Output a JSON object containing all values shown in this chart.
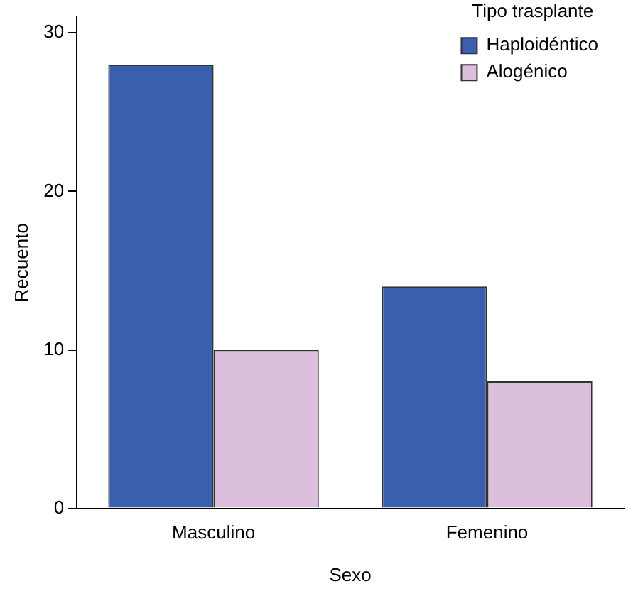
{
  "chart_data": {
    "type": "bar",
    "xlabel": "Sexo",
    "ylabel": "Recuento",
    "legend_title": "Tipo trasplante",
    "categories": [
      "Masculino",
      "Femenino"
    ],
    "series": [
      {
        "name": "Haploidéntico",
        "color": "#3a5fae",
        "values": [
          28,
          14
        ]
      },
      {
        "name": "Alogénico",
        "color": "#dcbfdc",
        "values": [
          10,
          8
        ]
      }
    ],
    "ylim": [
      0,
      31
    ],
    "yticks": [
      0,
      10,
      20,
      30
    ],
    "grid": false,
    "legend": "top right"
  }
}
